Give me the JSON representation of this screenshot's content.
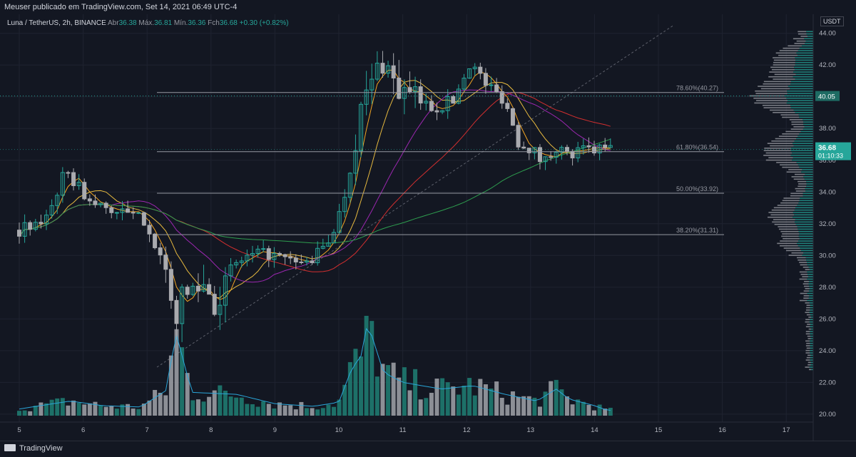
{
  "header": {
    "published": "Meuser publicado em TradingView.com, Set 14, 2021 06:49 UTC-4"
  },
  "legend": {
    "symbol": "Luna / TetherUS, 2h, BINANCE",
    "open_label": "Abr",
    "open": "36.38",
    "high_label": "Máx.",
    "high": "36.81",
    "low_label": "Mín.",
    "low": "36.36",
    "close_label": "Fch",
    "close": "36.68",
    "change": "+0.30 (+0.82%)"
  },
  "currency": "USDT",
  "footer": {
    "brand": "TradingView"
  },
  "colors": {
    "up": "#26a69a",
    "down": "#a9aaaf",
    "background": "#131722",
    "grid": "#1f2330",
    "ema_orange": "#f5a623",
    "ema_yellow": "#e6b93f",
    "ma_purple": "#9c27b0",
    "ma_red": "#d32f2f",
    "ma_green": "#2e9e4f",
    "volume_ma": "#2aa6d9"
  },
  "chart_data": {
    "type": "candlestick",
    "y_ticks": [
      "44.00",
      "42.00",
      "40.00",
      "38.00",
      "36.00",
      "34.00",
      "32.00",
      "30.00",
      "28.00",
      "26.00",
      "24.00",
      "22.00",
      "20.00"
    ],
    "x_ticks": [
      "5",
      "6",
      "7",
      "8",
      "9",
      "10",
      "11",
      "12",
      "13",
      "14",
      "15",
      "16",
      "17"
    ],
    "ylim": [
      19.5,
      45.2
    ],
    "price_label": "36.68",
    "countdown": "01:10:33",
    "level_label": "40.05",
    "fib_levels": [
      {
        "label": "78.60%(40.27)",
        "value": 40.27
      },
      {
        "label": "61.80%(36.54)",
        "value": 36.54
      },
      {
        "label": "50.00%(33.92)",
        "value": 33.92
      },
      {
        "label": "38.20%(31.31)",
        "value": 31.31
      }
    ],
    "horizontal_line": 40.05,
    "candle_anchors": [
      [
        5.0,
        31.6
      ],
      [
        5.3,
        31.8
      ],
      [
        5.5,
        33.2
      ],
      [
        5.7,
        35.0
      ],
      [
        5.9,
        34.6
      ],
      [
        6.1,
        33.3
      ],
      [
        6.5,
        32.8
      ],
      [
        7.0,
        32.2
      ],
      [
        7.2,
        29.8
      ],
      [
        7.4,
        26.2
      ],
      [
        7.6,
        27.4
      ],
      [
        7.85,
        28.4
      ],
      [
        8.1,
        27.0
      ],
      [
        8.35,
        29.4
      ],
      [
        8.6,
        29.9
      ],
      [
        8.9,
        30.1
      ],
      [
        9.2,
        29.6
      ],
      [
        9.5,
        29.5
      ],
      [
        9.8,
        30.6
      ],
      [
        10.0,
        32.5
      ],
      [
        10.15,
        34.8
      ],
      [
        10.3,
        38.5
      ],
      [
        10.5,
        40.8
      ],
      [
        10.7,
        42.5
      ],
      [
        10.9,
        40.5
      ],
      [
        11.2,
        39.8
      ],
      [
        11.5,
        39.3
      ],
      [
        11.8,
        39.8
      ],
      [
        12.05,
        42.2
      ],
      [
        12.3,
        40.8
      ],
      [
        12.6,
        39.8
      ],
      [
        12.8,
        37.2
      ],
      [
        13.0,
        36.8
      ],
      [
        13.2,
        35.8
      ],
      [
        13.4,
        36.9
      ],
      [
        13.6,
        36.2
      ],
      [
        13.8,
        36.6
      ],
      [
        14.2,
        36.68
      ]
    ],
    "volume_anchors": [
      [
        5.0,
        1.0
      ],
      [
        5.8,
        2.2
      ],
      [
        6.3,
        1.5
      ],
      [
        6.9,
        1.3
      ],
      [
        7.3,
        3.8
      ],
      [
        7.45,
        12.5
      ],
      [
        7.7,
        3.5
      ],
      [
        8.4,
        3.2
      ],
      [
        9.0,
        1.8
      ],
      [
        9.6,
        1.4
      ],
      [
        10.0,
        2.0
      ],
      [
        10.2,
        7.0
      ],
      [
        10.35,
        9.0
      ],
      [
        10.45,
        14.0
      ],
      [
        10.7,
        6.5
      ],
      [
        11.0,
        5.0
      ],
      [
        11.6,
        4.0
      ],
      [
        12.1,
        4.5
      ],
      [
        12.6,
        3.2
      ],
      [
        13.1,
        2.2
      ],
      [
        13.4,
        4.0
      ],
      [
        13.6,
        2.5
      ],
      [
        14.0,
        1.5
      ],
      [
        14.2,
        0.8
      ]
    ]
  }
}
